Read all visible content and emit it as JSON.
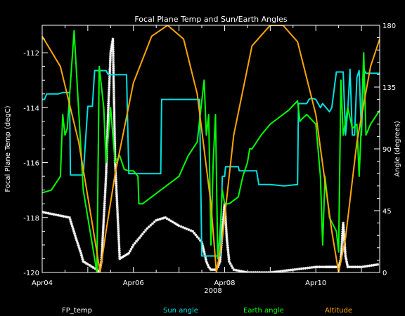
{
  "chart_data": {
    "type": "line",
    "title": "Focal Plane Temp and Sun/Earth Angles",
    "xlabel": "2008",
    "ylabel_left": "Focal Plane Temp (degC)",
    "ylabel_right": "Angle (degrees)",
    "x_unit": "day of April 2008",
    "xlim": [
      4.0,
      11.4
    ],
    "ylim_left": [
      -120,
      -111
    ],
    "ylim_right": [
      0,
      180
    ],
    "x_ticks": [
      {
        "value": 4,
        "label": "Apr04"
      },
      {
        "value": 6,
        "label": "Apr06"
      },
      {
        "value": 8,
        "label": "Apr08"
      },
      {
        "value": 10,
        "label": "Apr10"
      }
    ],
    "y_ticks_left": [
      {
        "value": -112,
        "label": "-112"
      },
      {
        "value": -114,
        "label": "-114"
      },
      {
        "value": -116,
        "label": "-116"
      },
      {
        "value": -118,
        "label": "-118"
      },
      {
        "value": -120,
        "label": "-120"
      }
    ],
    "y_ticks_right": [
      {
        "value": 0,
        "label": "0"
      },
      {
        "value": 45,
        "label": "45"
      },
      {
        "value": 90,
        "label": "90"
      },
      {
        "value": 135,
        "label": "135"
      },
      {
        "value": 180,
        "label": "180"
      }
    ],
    "grid": false,
    "legend_position": "bottom",
    "series": [
      {
        "name": "FP_temp",
        "color": "#ffffff",
        "marker": "asterisk",
        "axis": "left",
        "x": [
          4.0,
          4.3,
          4.6,
          4.75,
          4.85,
          4.9,
          5.0,
          5.2,
          5.25,
          5.3,
          5.4,
          5.45,
          5.5,
          5.55,
          5.6,
          5.7,
          5.8,
          5.9,
          6.0,
          6.1,
          6.3,
          6.5,
          6.7,
          6.9,
          7.0,
          7.3,
          7.5,
          7.6,
          7.65,
          7.7,
          7.8,
          7.85,
          7.9,
          7.95,
          8.0,
          8.05,
          8.1,
          8.2,
          8.5,
          9.0,
          9.5,
          10.0,
          10.2,
          10.3,
          10.4,
          10.5,
          10.55,
          10.6,
          10.65,
          10.7,
          11.0,
          11.4
        ],
        "y": [
          -117.8,
          -117.9,
          -118.0,
          -118.8,
          -119.3,
          -119.6,
          -119.7,
          -119.9,
          -120.0,
          -119.6,
          -116.5,
          -114.0,
          -112.0,
          -111.5,
          -116.0,
          -119.5,
          -119.4,
          -119.3,
          -119.0,
          -118.8,
          -118.4,
          -118.1,
          -118.0,
          -118.2,
          -118.3,
          -118.5,
          -118.9,
          -119.6,
          -119.8,
          -119.9,
          -119.9,
          -119.8,
          -119.6,
          -118.5,
          -117.5,
          -118.8,
          -119.6,
          -119.9,
          -120.0,
          -120.0,
          -119.9,
          -119.8,
          -119.8,
          -119.8,
          -119.8,
          -119.8,
          -119.5,
          -118.2,
          -119.4,
          -119.8,
          -119.8,
          -119.7
        ]
      },
      {
        "name": "Sun angle",
        "color": "#00e0e0",
        "axis": "right",
        "x": [
          4.0,
          4.05,
          4.1,
          4.35,
          4.45,
          4.6,
          4.62,
          4.9,
          5.0,
          5.1,
          5.15,
          5.4,
          5.45,
          5.85,
          5.9,
          6.6,
          6.62,
          7.4,
          7.45,
          7.5,
          7.9,
          7.95,
          8.0,
          8.02,
          8.3,
          8.32,
          8.7,
          8.75,
          9.0,
          9.3,
          9.6,
          9.62,
          9.8,
          9.85,
          9.9,
          10.0,
          10.1,
          10.15,
          10.3,
          10.35,
          10.45,
          10.6,
          10.65,
          10.7,
          10.75,
          10.8,
          10.85,
          10.9,
          10.95,
          11.0,
          11.05,
          11.1,
          11.15,
          11.2,
          11.4
        ],
        "y": [
          126,
          126,
          130,
          130,
          131,
          131,
          71,
          71,
          121,
          121,
          147,
          147,
          144,
          144,
          72,
          72,
          126,
          126,
          126,
          12,
          12,
          70,
          70,
          77,
          77,
          74,
          74,
          64,
          64,
          63,
          64,
          123,
          123,
          126,
          127,
          126,
          120,
          123,
          117,
          120,
          146,
          146,
          100,
          118,
          148,
          100,
          100,
          142,
          147,
          100,
          148,
          145,
          145,
          145,
          145
        ]
      },
      {
        "name": "Earth angle",
        "color": "#00ff00",
        "axis": "right",
        "x": [
          4.0,
          4.2,
          4.4,
          4.45,
          4.5,
          4.55,
          4.7,
          4.9,
          5.0,
          5.1,
          5.15,
          5.2,
          5.25,
          5.35,
          5.4,
          5.5,
          5.55,
          5.6,
          5.7,
          5.8,
          5.9,
          6.0,
          6.1,
          6.12,
          6.2,
          6.4,
          6.6,
          7.0,
          7.2,
          7.4,
          7.55,
          7.6,
          7.65,
          7.7,
          7.75,
          7.8,
          7.85,
          7.9,
          7.95,
          8.0,
          8.1,
          8.3,
          8.4,
          8.5,
          8.55,
          8.6,
          8.8,
          9.0,
          9.2,
          9.4,
          9.6,
          9.65,
          9.7,
          9.8,
          10.0,
          10.1,
          10.15,
          10.2,
          10.3,
          10.45,
          10.5,
          10.55,
          10.6,
          10.7,
          10.8,
          10.9,
          10.95,
          11.0,
          11.05,
          11.1,
          11.2,
          11.4
        ],
        "y": [
          58,
          60,
          70,
          115,
          100,
          105,
          176,
          60,
          40,
          20,
          10,
          0,
          150,
          120,
          80,
          120,
          100,
          80,
          85,
          75,
          74,
          74,
          70,
          50,
          50,
          55,
          60,
          70,
          85,
          95,
          140,
          100,
          115,
          20,
          80,
          115,
          10,
          30,
          60,
          50,
          50,
          55,
          70,
          80,
          90,
          90,
          100,
          108,
          113,
          118,
          125,
          110,
          112,
          115,
          108,
          70,
          20,
          70,
          40,
          30,
          15,
          140,
          100,
          120,
          105,
          108,
          70,
          110,
          160,
          100,
          108,
          118
        ]
      },
      {
        "name": "Altitude",
        "color": "#ffa500",
        "axis": "right",
        "x": [
          4.0,
          4.4,
          4.8,
          5.1,
          5.27,
          5.4,
          5.6,
          6.0,
          6.4,
          6.75,
          7.1,
          7.4,
          7.7,
          7.82,
          7.95,
          8.2,
          8.6,
          9.0,
          9.28,
          9.6,
          10.0,
          10.35,
          10.5,
          10.65,
          10.9,
          11.2,
          11.4
        ],
        "y": [
          172,
          150,
          95,
          35,
          0,
          30,
          72,
          138,
          172,
          180,
          170,
          130,
          50,
          0,
          25,
          100,
          165,
          180,
          180,
          168,
          115,
          30,
          0,
          25,
          95,
          150,
          170
        ]
      }
    ]
  }
}
